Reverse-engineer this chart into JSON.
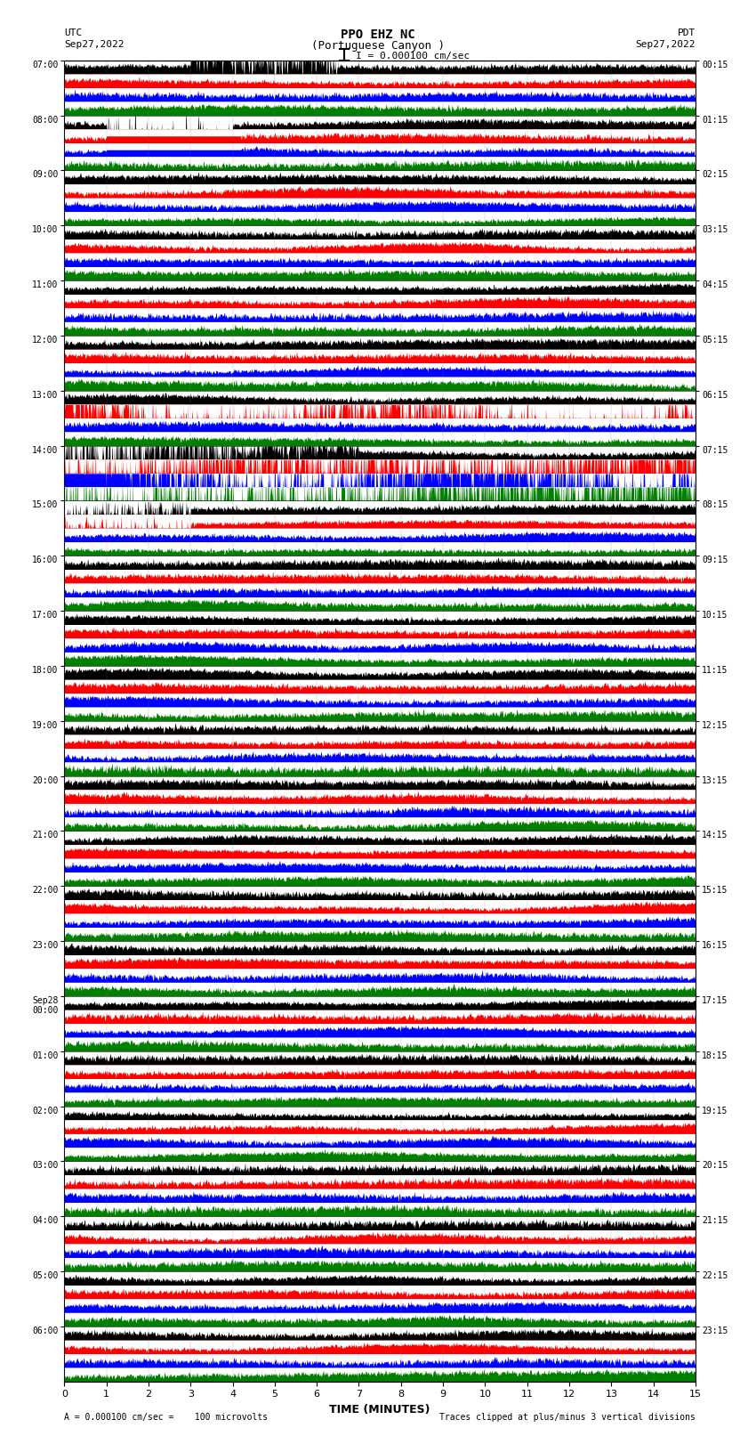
{
  "title_line1": "PPO EHZ NC",
  "title_line2": "(Portuguese Canyon )",
  "title_scale": "I = 0.000100 cm/sec",
  "left_header_line1": "UTC",
  "left_header_line2": "Sep27,2022",
  "right_header_line1": "PDT",
  "right_header_line2": "Sep27,2022",
  "xlabel": "TIME (MINUTES)",
  "footer_left": "A = 0.000100 cm/sec =    100 microvolts",
  "footer_right": "Traces clipped at plus/minus 3 vertical divisions",
  "utc_labels": [
    "07:00",
    "08:00",
    "09:00",
    "10:00",
    "11:00",
    "12:00",
    "13:00",
    "14:00",
    "15:00",
    "16:00",
    "17:00",
    "18:00",
    "19:00",
    "20:00",
    "21:00",
    "22:00",
    "23:00",
    "Sep28\n00:00",
    "01:00",
    "02:00",
    "03:00",
    "04:00",
    "05:00",
    "06:00"
  ],
  "pdt_labels": [
    "00:15",
    "01:15",
    "02:15",
    "03:15",
    "04:15",
    "05:15",
    "06:15",
    "07:15",
    "08:15",
    "09:15",
    "10:15",
    "11:15",
    "12:15",
    "13:15",
    "14:15",
    "15:15",
    "16:15",
    "17:15",
    "18:15",
    "19:15",
    "20:15",
    "21:15",
    "22:15",
    "23:15"
  ],
  "num_rows": 24,
  "traces_per_row": 4,
  "colors": [
    "black",
    "red",
    "blue",
    "green"
  ],
  "background_color": "white",
  "xlim": [
    0,
    15
  ],
  "xticks": [
    0,
    1,
    2,
    3,
    4,
    5,
    6,
    7,
    8,
    9,
    10,
    11,
    12,
    13,
    14,
    15
  ],
  "figsize": [
    8.5,
    16.13
  ],
  "dpi": 100,
  "seed": 42,
  "n_points": 3000
}
